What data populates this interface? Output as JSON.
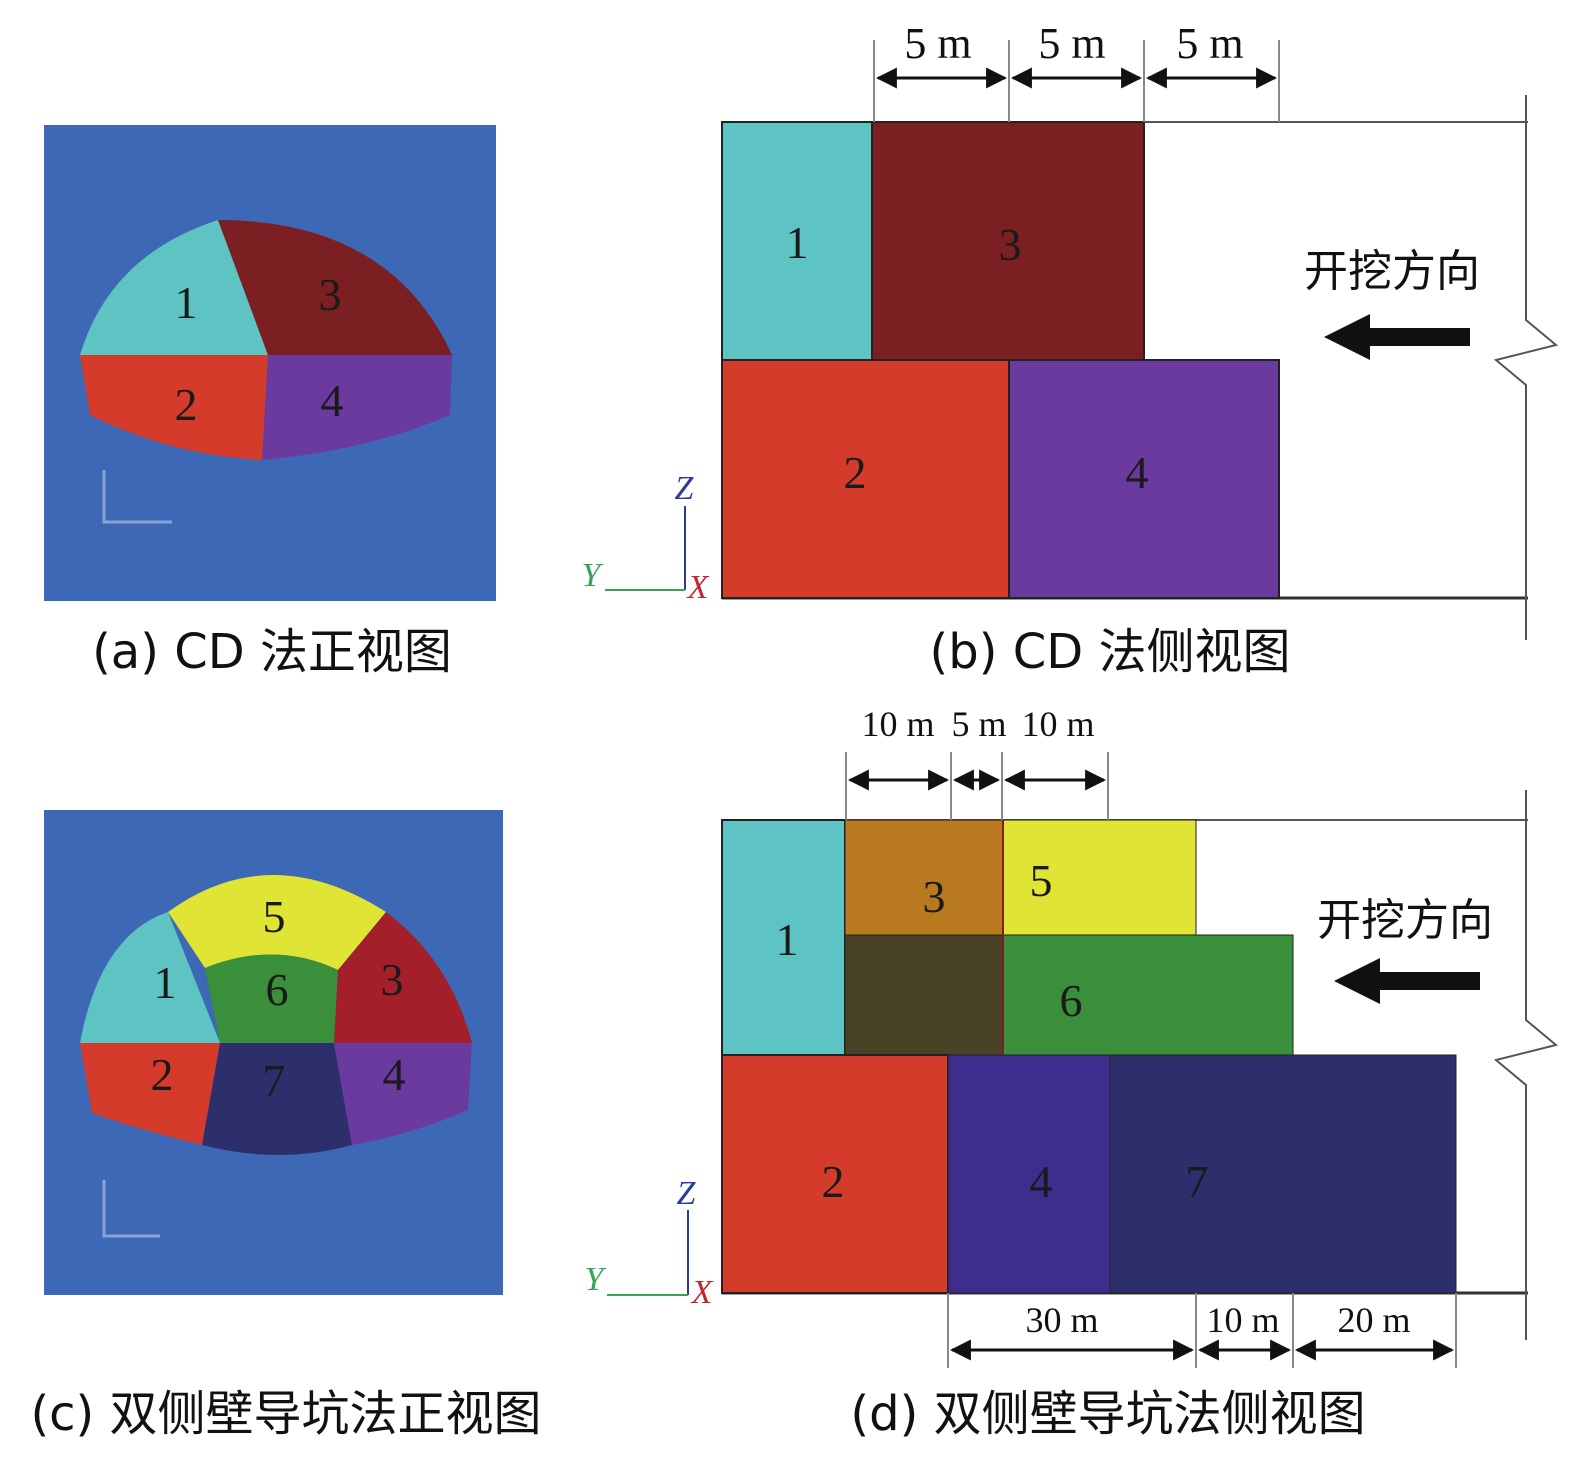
{
  "colors": {
    "background_blue": "#3d68b5",
    "cyan": "#5ec3c3",
    "dark_red": "#7b1f22",
    "red": "#d53b2b",
    "purple": "#6a3a9e",
    "yellow": "#e0e434",
    "green": "#3a8f3a",
    "dark_green": "#4a4226",
    "brown": "#b8791f",
    "dark_navy": "#2c2f6b",
    "indigo": "#3f2d8e"
  },
  "panel_a": {
    "caption": "(a) CD 法正视图",
    "labels": [
      "1",
      "2",
      "3",
      "4"
    ]
  },
  "panel_b": {
    "caption": "(b) CD 法侧视图",
    "dims": [
      "5 m",
      "5 m",
      "5 m"
    ],
    "direction": "开挖方向",
    "blocks": [
      "1",
      "2",
      "3",
      "4"
    ],
    "axes": {
      "z": "Z",
      "y": "Y",
      "x": "X"
    }
  },
  "panel_c": {
    "caption": "(c) 双侧壁导坑法正视图",
    "labels": [
      "1",
      "2",
      "3",
      "4",
      "5",
      "6",
      "7"
    ]
  },
  "panel_d": {
    "caption": "(d) 双侧壁导坑法侧视图",
    "top_dims": [
      "10 m",
      "5 m",
      "10 m"
    ],
    "bottom_dims": [
      "30 m",
      "10 m",
      "20 m"
    ],
    "direction": "开挖方向",
    "blocks": [
      "1",
      "2",
      "3",
      "4",
      "5",
      "6",
      "7"
    ],
    "axes": {
      "z": "Z",
      "y": "Y",
      "x": "X"
    }
  }
}
